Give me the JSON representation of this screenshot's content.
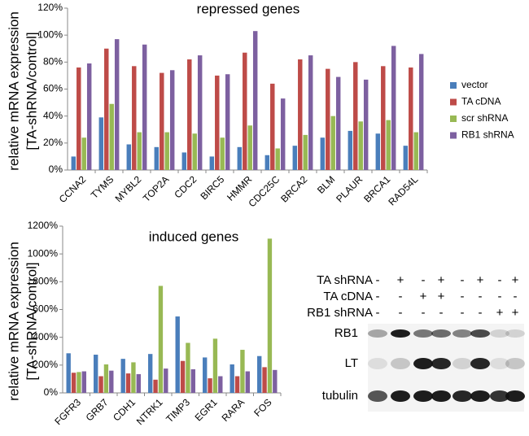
{
  "chart_data": [
    {
      "type": "bar",
      "title": "repressed genes",
      "y_label": [
        "relative mRNA expression",
        "[TA-shRNA/control]"
      ],
      "categories": [
        "CCNA2",
        "TYMS",
        "MYBL2",
        "TOP2A",
        "CDC2",
        "BIRC5",
        "HMMR",
        "CDC25C",
        "BRCA2",
        "BLM",
        "PLAUR",
        "BRCA1",
        "RAD54L"
      ],
      "series": [
        {
          "name": "vector",
          "color": "#4a7ebb",
          "values": [
            10,
            39,
            19,
            17,
            13,
            10,
            17,
            11,
            18,
            24,
            29,
            27,
            18
          ]
        },
        {
          "name": "TA cDNA",
          "color": "#be4b48",
          "values": [
            76,
            90,
            77,
            72,
            82,
            70,
            87,
            64,
            82,
            75,
            80,
            77,
            76
          ]
        },
        {
          "name": "scr shRNA",
          "color": "#98b954",
          "values": [
            24,
            49,
            28,
            28,
            27,
            24,
            33,
            16,
            26,
            40,
            36,
            37,
            28
          ]
        },
        {
          "name": "RB1 shRNA",
          "color": "#7d60a0",
          "values": [
            79,
            97,
            93,
            74,
            85,
            71,
            103,
            53,
            85,
            69,
            67,
            92,
            86
          ]
        }
      ],
      "ylim": [
        0,
        120
      ],
      "yticks": [
        {
          "value": 0,
          "label": "0%"
        },
        {
          "value": 20,
          "label": "20%"
        },
        {
          "value": 40,
          "label": "40%"
        },
        {
          "value": 60,
          "label": "60%"
        },
        {
          "value": 80,
          "label": "80%"
        },
        {
          "value": 100,
          "label": "100%"
        },
        {
          "value": 120,
          "label": "120%"
        }
      ],
      "legend": "right"
    },
    {
      "type": "bar",
      "title": "induced genes",
      "y_label": [
        "relative mRNA expression",
        "[TA-shRNA/control]"
      ],
      "categories": [
        "FGFR3",
        "GRB7",
        "CDH1",
        "NTRK1",
        "TIMP3",
        "EGR1",
        "RARA",
        "FOS"
      ],
      "series": [
        {
          "color": "#4a7ebb",
          "values": [
            285,
            275,
            245,
            280,
            550,
            255,
            205,
            265
          ]
        },
        {
          "color": "#be4b48",
          "values": [
            145,
            120,
            140,
            95,
            230,
            105,
            120,
            185
          ]
        },
        {
          "color": "#98b954",
          "values": [
            150,
            205,
            220,
            770,
            360,
            390,
            310,
            1110
          ]
        },
        {
          "color": "#7d60a0",
          "values": [
            155,
            160,
            135,
            175,
            170,
            120,
            155,
            165
          ]
        }
      ],
      "ylim": [
        0,
        1200
      ],
      "yticks": [
        {
          "value": 0,
          "label": "0%"
        },
        {
          "value": 200,
          "label": "200%"
        },
        {
          "value": 400,
          "label": "400%"
        },
        {
          "value": 600,
          "label": "600%"
        },
        {
          "value": 800,
          "label": "800%"
        },
        {
          "value": 1000,
          "label": "1000%"
        },
        {
          "value": 1200,
          "label": "1200%"
        }
      ]
    }
  ],
  "blot": {
    "conditions": [
      {
        "label": "TA shRNA",
        "signs": [
          "-",
          "+",
          "-",
          "+",
          "-",
          "+",
          "-",
          "+"
        ]
      },
      {
        "label": "TA cDNA",
        "signs": [
          "-",
          "-",
          "+",
          "+",
          "-",
          "-",
          "-",
          "-"
        ]
      },
      {
        "label": "RB1 shRNA",
        "signs": [
          "-",
          "-",
          "-",
          "-",
          "-",
          "-",
          "+",
          "+"
        ]
      }
    ],
    "bands": [
      "RB1",
      "LT",
      "tubulin"
    ]
  }
}
